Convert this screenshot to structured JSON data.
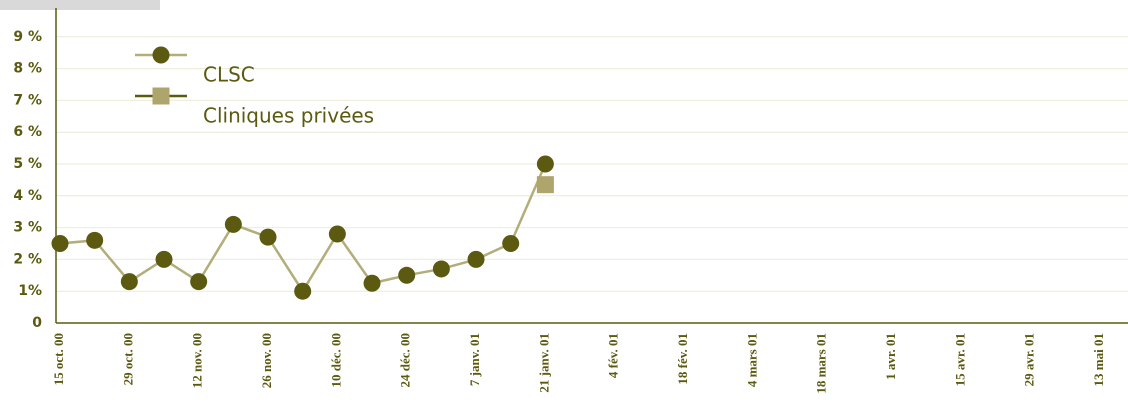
{
  "chart_data": {
    "type": "line",
    "categories": [
      "15 oct. 00",
      null,
      "29 oct. 00",
      null,
      "12 nov. 00",
      null,
      "26 nov. 00",
      null,
      "10 déc. 00",
      null,
      "24 déc. 00",
      null,
      "7 janv. 01",
      null,
      "21 janv. 01",
      null,
      "4 fév. 01",
      null,
      "18 fév. 01",
      null,
      "4 mars 01",
      null,
      "18 mars 01",
      null,
      "1 avr. 01",
      null,
      "15 avr. 01",
      null,
      "29 avr. 01",
      null,
      "13 mai 01"
    ],
    "series": [
      {
        "name": "CLSC",
        "color": "#5c5a10",
        "line_color": "#b3ad7a",
        "marker": "circle",
        "values": [
          2.5,
          2.6,
          1.3,
          2.0,
          1.3,
          3.1,
          2.7,
          1.0,
          2.8,
          1.25,
          1.5,
          1.7,
          2.0,
          2.5,
          5.0,
          null,
          null,
          null,
          null,
          null,
          null,
          null,
          null,
          null,
          null,
          null,
          null,
          null,
          null,
          null,
          null
        ]
      },
      {
        "name": "Cliniques privées",
        "color": "#aea56c",
        "line_color": "#5c5a10",
        "marker": "square",
        "values": [
          null,
          null,
          null,
          null,
          null,
          null,
          null,
          null,
          null,
          null,
          null,
          null,
          null,
          null,
          4.35,
          null,
          null,
          null,
          null,
          null,
          null,
          null,
          null,
          null,
          null,
          null,
          null,
          null,
          null,
          null,
          null
        ]
      }
    ],
    "ylim": [
      0,
      10
    ],
    "yticks": [
      0,
      {
        "value": 1,
        "label": "1%"
      },
      {
        "value": 2,
        "label": "2 %"
      },
      {
        "value": 3,
        "label": "3 %"
      },
      {
        "value": 4,
        "label": "4 %"
      },
      {
        "value": 5,
        "label": "5 %"
      },
      {
        "value": 6,
        "label": "6 %"
      },
      {
        "value": 7,
        "label": "7 %"
      },
      {
        "value": 8,
        "label": "8 %"
      },
      {
        "value": 9,
        "label": "9 %"
      }
    ],
    "grid": true
  }
}
